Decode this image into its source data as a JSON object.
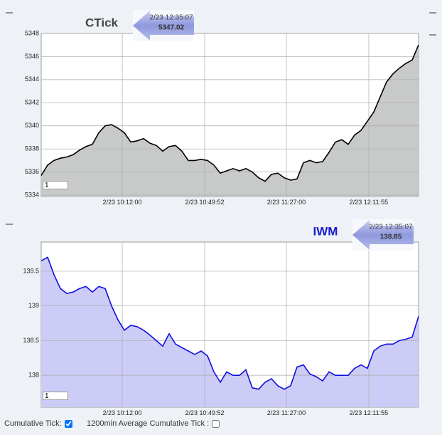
{
  "chart_data": [
    {
      "type": "area",
      "title": "CTick",
      "title_color": "#444444",
      "callout": {
        "time": "2/23 12:35:07",
        "value": 5347.02
      },
      "color": "#000000",
      "fill": "#c8c9c9",
      "values": [
        5335.7,
        5336.6,
        5337.0,
        5337.2,
        5337.3,
        5337.5,
        5337.9,
        5338.2,
        5338.4,
        5339.4,
        5340.0,
        5340.1,
        5339.8,
        5339.4,
        5338.6,
        5338.7,
        5338.9,
        5338.5,
        5338.3,
        5337.8,
        5338.2,
        5338.3,
        5337.8,
        5337.0,
        5337.0,
        5337.1,
        5337.0,
        5336.6,
        5335.9,
        5336.1,
        5336.3,
        5336.1,
        5336.3,
        5336.0,
        5335.5,
        5335.2,
        5335.8,
        5335.9,
        5335.5,
        5335.3,
        5335.4,
        5336.8,
        5337.0,
        5336.8,
        5336.9,
        5337.7,
        5338.6,
        5338.8,
        5338.4,
        5339.2,
        5339.6,
        5340.4,
        5341.2,
        5342.5,
        5343.8,
        5344.5,
        5345.0,
        5345.4,
        5345.7,
        5347.0
      ],
      "xlim": [
        0,
        59
      ],
      "ylim": [
        5333.88,
        5348
      ],
      "xticks": [
        {
          "value": 12.67,
          "label": "2/23 10:12:00"
        },
        {
          "value": 25.56,
          "label": "2/23 10:49:52"
        },
        {
          "value": 38.33,
          "label": "2/23 11:27:00"
        },
        {
          "value": 51.22,
          "label": "2/23 12:11:55"
        }
      ],
      "yticks": [
        5334,
        5336,
        5338,
        5340,
        5342,
        5344,
        5346,
        5348
      ],
      "grid": true,
      "range_input": 1
    },
    {
      "type": "area",
      "title": "IWM",
      "title_color": "#1a1ad0",
      "callout": {
        "time": "2/23 12:35:07",
        "value": 138.85
      },
      "color": "#1010e0",
      "fill": "#ccccf6",
      "values": [
        139.65,
        139.7,
        139.45,
        139.25,
        139.18,
        139.2,
        139.25,
        139.28,
        139.2,
        139.28,
        139.25,
        139.0,
        138.8,
        138.65,
        138.72,
        138.7,
        138.65,
        138.58,
        138.5,
        138.42,
        138.6,
        138.45,
        138.4,
        138.35,
        138.3,
        138.35,
        138.28,
        138.05,
        137.9,
        138.05,
        138.0,
        138.0,
        138.08,
        137.82,
        137.8,
        137.9,
        137.95,
        137.85,
        137.8,
        137.85,
        138.12,
        138.15,
        138.02,
        137.98,
        137.92,
        138.05,
        138.0,
        138.0,
        138.0,
        138.1,
        138.15,
        138.1,
        138.35,
        138.42,
        138.45,
        138.45,
        138.5,
        138.52,
        138.55,
        138.85
      ],
      "xlim": [
        0,
        59
      ],
      "ylim": [
        137.54,
        139.92
      ],
      "xticks": [
        {
          "value": 12.67,
          "label": "2/23 10:12:00"
        },
        {
          "value": 25.56,
          "label": "2/23 10:49:52"
        },
        {
          "value": 38.33,
          "label": "2/23 11:27:00"
        },
        {
          "value": 51.22,
          "label": "2/23 12:11:55"
        }
      ],
      "yticks": [
        138,
        138.5,
        139,
        139.5
      ],
      "grid": true,
      "range_input": 1
    }
  ],
  "controls": [
    {
      "label": "Cumulative Tick:",
      "checked": true
    },
    {
      "label": "1200min Average Cumulative Tick :",
      "checked": false
    }
  ]
}
